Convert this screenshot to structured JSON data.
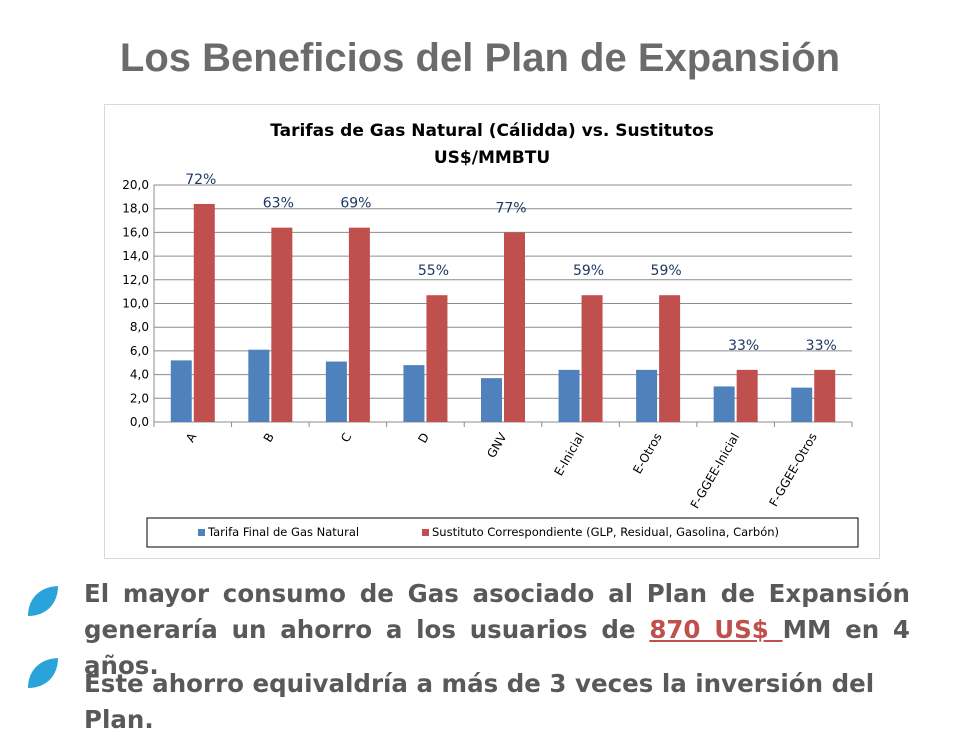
{
  "slide": {
    "title": "Los Beneficios del Plan de Expansión"
  },
  "chart_data": {
    "type": "bar",
    "title": "Tarifas de Gas Natural (Cálidda) vs. Sustitutos",
    "subtitle": "US$/MMBTU",
    "categories": [
      "A",
      "B",
      "C",
      "D",
      "GNV",
      "E-Inicial",
      "E-Otros",
      "F-GGEE-Inicial",
      "F-GGEE-Otros"
    ],
    "series": [
      {
        "name": "Tarifa Final de Gas Natural",
        "color": "#4f81bd",
        "values": [
          5.2,
          6.1,
          5.1,
          4.8,
          3.7,
          4.4,
          4.4,
          3.0,
          2.9
        ]
      },
      {
        "name": "Sustituto Correspondiente  (GLP, Residual, Gasolina, Carbón)",
        "color": "#c0504d",
        "values": [
          18.4,
          16.4,
          16.4,
          10.7,
          16.0,
          10.7,
          10.7,
          4.4,
          4.4
        ]
      }
    ],
    "data_labels": [
      "72%",
      "63%",
      "69%",
      "55%",
      "77%",
      "59%",
      "59%",
      "33%",
      "33%"
    ],
    "ylim": [
      0,
      20
    ],
    "yticks": [
      "20,0",
      "18,0",
      "16,0",
      "14,0",
      "12,0",
      "10,0",
      "8,0",
      "6,0",
      "4,0",
      "2,0",
      "0,0"
    ],
    "grid": true,
    "legend_position": "bottom"
  },
  "bullets": {
    "first_before": "El mayor consumo de Gas asociado al Plan de Expansión generaría un ahorro a los usuarios de ",
    "first_amount": "870 US$ ",
    "first_after": "MM en 4 años.",
    "second": "Este ahorro equivaldría a más de 3 veces la inversión del Plan.",
    "icon_color": "#29a3d9"
  }
}
